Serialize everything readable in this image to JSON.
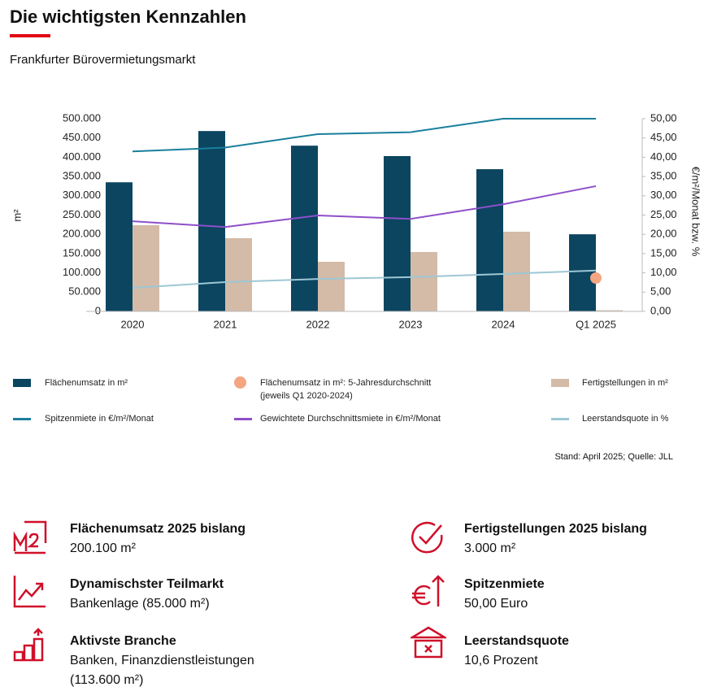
{
  "header": {
    "title": "Die wichtigsten Kennzahlen",
    "subtitle": "Frankfurter Bürovermietungsmarkt"
  },
  "chart_data": {
    "type": "combo",
    "categories": [
      "2020",
      "2021",
      "2022",
      "2023",
      "2024",
      "Q1 2025"
    ],
    "ylabel": "m²",
    "y2label": "€/m²/Monat bzw. %",
    "ylim": [
      0,
      500000
    ],
    "yticks": [
      0,
      {
        "value": 50000,
        "label": "50.000"
      },
      {
        "value": 100000,
        "label": "100.000"
      },
      {
        "value": 150000,
        "label": "150.000"
      },
      {
        "value": 200000,
        "label": "200.000"
      },
      {
        "value": 250000,
        "label": "250.000"
      },
      {
        "value": 300000,
        "label": "300.000"
      },
      {
        "value": 350000,
        "label": "350.000"
      },
      {
        "value": 400000,
        "label": "400.000"
      },
      {
        "value": 450000,
        "label": "450.000"
      },
      {
        "value": 500000,
        "label": "500.000"
      }
    ],
    "y2lim": [
      0,
      50
    ],
    "y2ticks": [
      {
        "value": 0,
        "label": "0,00"
      },
      {
        "value": 5,
        "label": "5,00"
      },
      {
        "value": 10,
        "label": "10,00"
      },
      {
        "value": 15,
        "label": "15,00"
      },
      {
        "value": 20,
        "label": "20,00"
      },
      {
        "value": 25,
        "label": "25,00"
      },
      {
        "value": 30,
        "label": "30,00"
      },
      {
        "value": 35,
        "label": "35,00"
      },
      {
        "value": 40,
        "label": "40,00"
      },
      {
        "value": 45,
        "label": "45,00"
      },
      {
        "value": 50,
        "label": "50,00"
      }
    ],
    "series": [
      {
        "name": "Flächenumsatz in m²",
        "type": "bar",
        "color": "#0b4560",
        "values": [
          335000,
          468000,
          430000,
          403000,
          369000,
          200100
        ]
      },
      {
        "name": "Flächenumsatz in m²: 5-Jahresdurchschnitt (jeweils Q1 2020-2024)",
        "type": "scatter",
        "color": "#f4a582",
        "values": [
          null,
          null,
          null,
          null,
          null,
          86500
        ]
      },
      {
        "name": "Fertigstellungen in m²",
        "type": "bar",
        "color": "#d3bba8",
        "values": [
          223600,
          190000,
          128700,
          154000,
          206700,
          3000
        ]
      },
      {
        "name": "Spitzenmiete in €/m²/Monat",
        "type": "line",
        "axis": "y2",
        "color": "#1a7f9c",
        "values": [
          41.5,
          42.5,
          46,
          46.5,
          50,
          50
        ]
      },
      {
        "name": "Gewichtete Durchschnittsmiete in €/m²/Monat",
        "type": "line",
        "axis": "y2",
        "color": "#8e4fc9",
        "values": [
          23.4,
          21.9,
          24.9,
          24,
          27.8,
          32.5
        ]
      },
      {
        "name": "Leerstandsquote in %",
        "type": "line",
        "axis": "y2",
        "color": "#9ec7d4",
        "values": [
          6.1,
          7.6,
          8.4,
          8.9,
          9.7,
          10.6
        ]
      }
    ],
    "source": "Stand: April 2025; Quelle: JLL"
  },
  "kpis": [
    {
      "title": "Flächenumsatz  2025 bislang",
      "value": "200.100 m²"
    },
    {
      "title": "Fertigstellungen  2025 bislang",
      "value": "3.000 m²"
    },
    {
      "title": "Dynamischster  Teilmarkt",
      "value": "Bankenlage (85.000 m²)"
    },
    {
      "title": "Spitzenmiete",
      "value": "50,00 Euro"
    },
    {
      "title": "Aktivste Branche",
      "value": "Banken, Finanzdienstleistungen (113.600 m²)"
    },
    {
      "title": "Leerstandsquote",
      "value": "10,6 Prozent"
    }
  ]
}
